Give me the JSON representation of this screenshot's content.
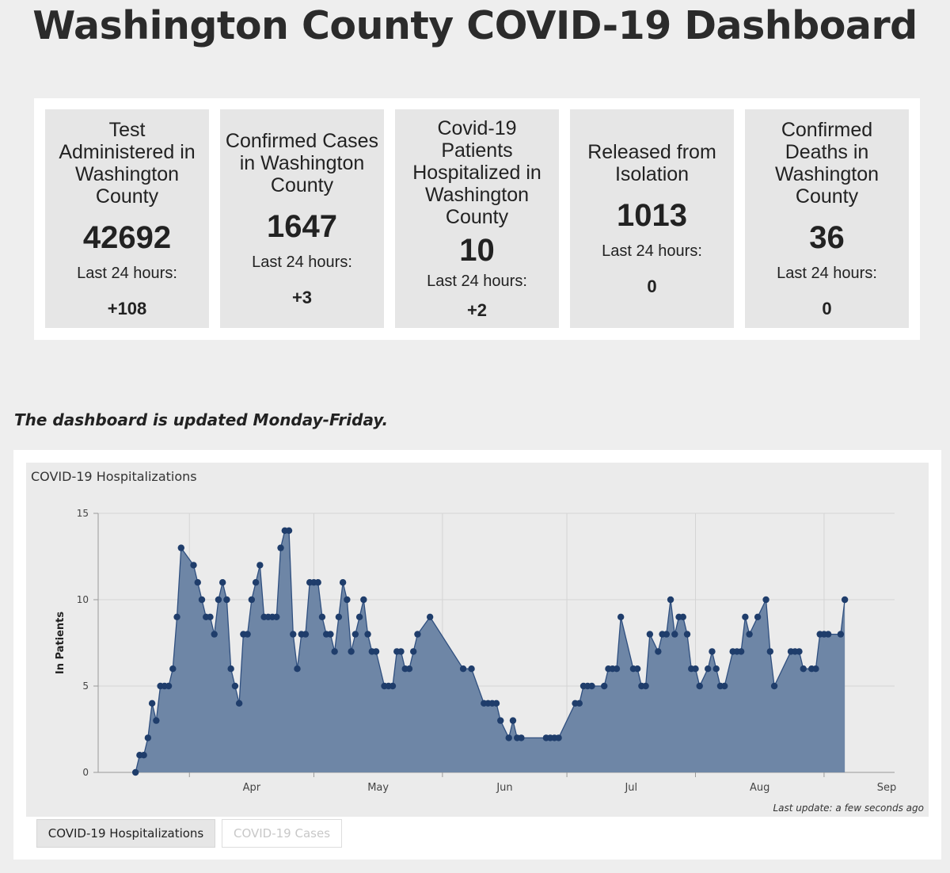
{
  "page": {
    "title": "Washington County COVID-19 Dashboard",
    "update_note": "The dashboard is updated Monday-Friday."
  },
  "stats": [
    {
      "label": "Test Administered in Washington County",
      "value": "42692",
      "last24_label": "Last 24 hours:",
      "last24_value": "+108"
    },
    {
      "label": "Confirmed Cases in Washington County",
      "value": "1647",
      "last24_label": "Last 24 hours:",
      "last24_value": "+3"
    },
    {
      "label": "Covid-19 Patients Hospitalized in Washington County",
      "value": "10",
      "last24_label": "Last 24 hours:",
      "last24_value": "+2"
    },
    {
      "label": "Released from Isolation",
      "value": "1013",
      "last24_label": "Last 24 hours:",
      "last24_value": "0"
    },
    {
      "label": "Confirmed Deaths in Washington County",
      "value": "36",
      "last24_label": "Last 24 hours:",
      "last24_value": "0"
    }
  ],
  "chart_panel": {
    "title": "COVID-19 Hospitalizations",
    "last_update": "Last update: a few seconds ago",
    "tabs": [
      {
        "label": "COVID-19 Hospitalizations",
        "active": true
      },
      {
        "label": "COVID-19 Cases",
        "active": false
      }
    ]
  },
  "colors": {
    "area_fill": "#6e86a6",
    "line": "#2f4f7f",
    "point": "#1f3d6b"
  },
  "chart_data": {
    "type": "area",
    "title": "COVID-19 Hospitalizations",
    "xlabel": "",
    "ylabel": "In Patients",
    "ylim": [
      0,
      15
    ],
    "yticks": [
      0,
      5,
      10,
      15
    ],
    "xlim": [
      "2020-03-10",
      "2020-09-18"
    ],
    "xticks": [
      {
        "label": "Apr",
        "date": "2020-04-01"
      },
      {
        "label": "May",
        "date": "2020-05-01"
      },
      {
        "label": "Jun",
        "date": "2020-06-01"
      },
      {
        "label": "Jul",
        "date": "2020-07-01"
      },
      {
        "label": "Aug",
        "date": "2020-08-01"
      },
      {
        "label": "Sep",
        "date": "2020-09-01"
      }
    ],
    "grid": true,
    "legend": "none",
    "series": [
      {
        "points": [
          [
            "2020-03-19",
            0
          ],
          [
            "2020-03-20",
            1
          ],
          [
            "2020-03-21",
            1
          ],
          [
            "2020-03-22",
            2
          ],
          [
            "2020-03-23",
            4
          ],
          [
            "2020-03-24",
            3
          ],
          [
            "2020-03-25",
            5
          ],
          [
            "2020-03-26",
            5
          ],
          [
            "2020-03-27",
            5
          ],
          [
            "2020-03-28",
            6
          ],
          [
            "2020-03-29",
            9
          ],
          [
            "2020-03-30",
            13
          ],
          [
            "2020-04-02",
            12
          ],
          [
            "2020-04-03",
            11
          ],
          [
            "2020-04-04",
            10
          ],
          [
            "2020-04-05",
            9
          ],
          [
            "2020-04-06",
            9
          ],
          [
            "2020-04-07",
            8
          ],
          [
            "2020-04-08",
            10
          ],
          [
            "2020-04-09",
            11
          ],
          [
            "2020-04-10",
            10
          ],
          [
            "2020-04-11",
            6
          ],
          [
            "2020-04-12",
            5
          ],
          [
            "2020-04-13",
            4
          ],
          [
            "2020-04-14",
            8
          ],
          [
            "2020-04-15",
            8
          ],
          [
            "2020-04-16",
            10
          ],
          [
            "2020-04-17",
            11
          ],
          [
            "2020-04-18",
            12
          ],
          [
            "2020-04-19",
            9
          ],
          [
            "2020-04-20",
            9
          ],
          [
            "2020-04-21",
            9
          ],
          [
            "2020-04-22",
            9
          ],
          [
            "2020-04-23",
            13
          ],
          [
            "2020-04-24",
            14
          ],
          [
            "2020-04-25",
            14
          ],
          [
            "2020-04-26",
            8
          ],
          [
            "2020-04-27",
            6
          ],
          [
            "2020-04-28",
            8
          ],
          [
            "2020-04-29",
            8
          ],
          [
            "2020-04-30",
            11
          ],
          [
            "2020-05-01",
            11
          ],
          [
            "2020-05-02",
            11
          ],
          [
            "2020-05-03",
            9
          ],
          [
            "2020-05-04",
            8
          ],
          [
            "2020-05-05",
            8
          ],
          [
            "2020-05-06",
            7
          ],
          [
            "2020-05-07",
            9
          ],
          [
            "2020-05-08",
            11
          ],
          [
            "2020-05-09",
            10
          ],
          [
            "2020-05-10",
            7
          ],
          [
            "2020-05-11",
            8
          ],
          [
            "2020-05-12",
            9
          ],
          [
            "2020-05-13",
            10
          ],
          [
            "2020-05-14",
            8
          ],
          [
            "2020-05-15",
            7
          ],
          [
            "2020-05-16",
            7
          ],
          [
            "2020-05-18",
            5
          ],
          [
            "2020-05-19",
            5
          ],
          [
            "2020-05-20",
            5
          ],
          [
            "2020-05-21",
            7
          ],
          [
            "2020-05-22",
            7
          ],
          [
            "2020-05-23",
            6
          ],
          [
            "2020-05-24",
            6
          ],
          [
            "2020-05-25",
            7
          ],
          [
            "2020-05-26",
            8
          ],
          [
            "2020-05-29",
            9
          ],
          [
            "2020-06-06",
            6
          ],
          [
            "2020-06-08",
            6
          ],
          [
            "2020-06-11",
            4
          ],
          [
            "2020-06-12",
            4
          ],
          [
            "2020-06-13",
            4
          ],
          [
            "2020-06-14",
            4
          ],
          [
            "2020-06-15",
            3
          ],
          [
            "2020-06-17",
            2
          ],
          [
            "2020-06-18",
            3
          ],
          [
            "2020-06-19",
            2
          ],
          [
            "2020-06-20",
            2
          ],
          [
            "2020-06-26",
            2
          ],
          [
            "2020-06-27",
            2
          ],
          [
            "2020-06-28",
            2
          ],
          [
            "2020-06-29",
            2
          ],
          [
            "2020-07-03",
            4
          ],
          [
            "2020-07-04",
            4
          ],
          [
            "2020-07-05",
            5
          ],
          [
            "2020-07-06",
            5
          ],
          [
            "2020-07-07",
            5
          ],
          [
            "2020-07-10",
            5
          ],
          [
            "2020-07-11",
            6
          ],
          [
            "2020-07-12",
            6
          ],
          [
            "2020-07-13",
            6
          ],
          [
            "2020-07-14",
            9
          ],
          [
            "2020-07-17",
            6
          ],
          [
            "2020-07-18",
            6
          ],
          [
            "2020-07-19",
            5
          ],
          [
            "2020-07-20",
            5
          ],
          [
            "2020-07-21",
            8
          ],
          [
            "2020-07-23",
            7
          ],
          [
            "2020-07-24",
            8
          ],
          [
            "2020-07-25",
            8
          ],
          [
            "2020-07-26",
            10
          ],
          [
            "2020-07-27",
            8
          ],
          [
            "2020-07-28",
            9
          ],
          [
            "2020-07-29",
            9
          ],
          [
            "2020-07-30",
            8
          ],
          [
            "2020-07-31",
            6
          ],
          [
            "2020-08-01",
            6
          ],
          [
            "2020-08-02",
            5
          ],
          [
            "2020-08-04",
            6
          ],
          [
            "2020-08-05",
            7
          ],
          [
            "2020-08-06",
            6
          ],
          [
            "2020-08-07",
            5
          ],
          [
            "2020-08-08",
            5
          ],
          [
            "2020-08-10",
            7
          ],
          [
            "2020-08-11",
            7
          ],
          [
            "2020-08-12",
            7
          ],
          [
            "2020-08-13",
            9
          ],
          [
            "2020-08-14",
            8
          ],
          [
            "2020-08-16",
            9
          ],
          [
            "2020-08-18",
            10
          ],
          [
            "2020-08-19",
            7
          ],
          [
            "2020-08-20",
            5
          ],
          [
            "2020-08-24",
            7
          ],
          [
            "2020-08-25",
            7
          ],
          [
            "2020-08-26",
            7
          ],
          [
            "2020-08-27",
            6
          ],
          [
            "2020-08-29",
            6
          ],
          [
            "2020-08-30",
            6
          ],
          [
            "2020-08-31",
            8
          ],
          [
            "2020-09-01",
            8
          ],
          [
            "2020-09-02",
            8
          ],
          [
            "2020-09-05",
            8
          ],
          [
            "2020-09-06",
            10
          ]
        ]
      }
    ]
  }
}
